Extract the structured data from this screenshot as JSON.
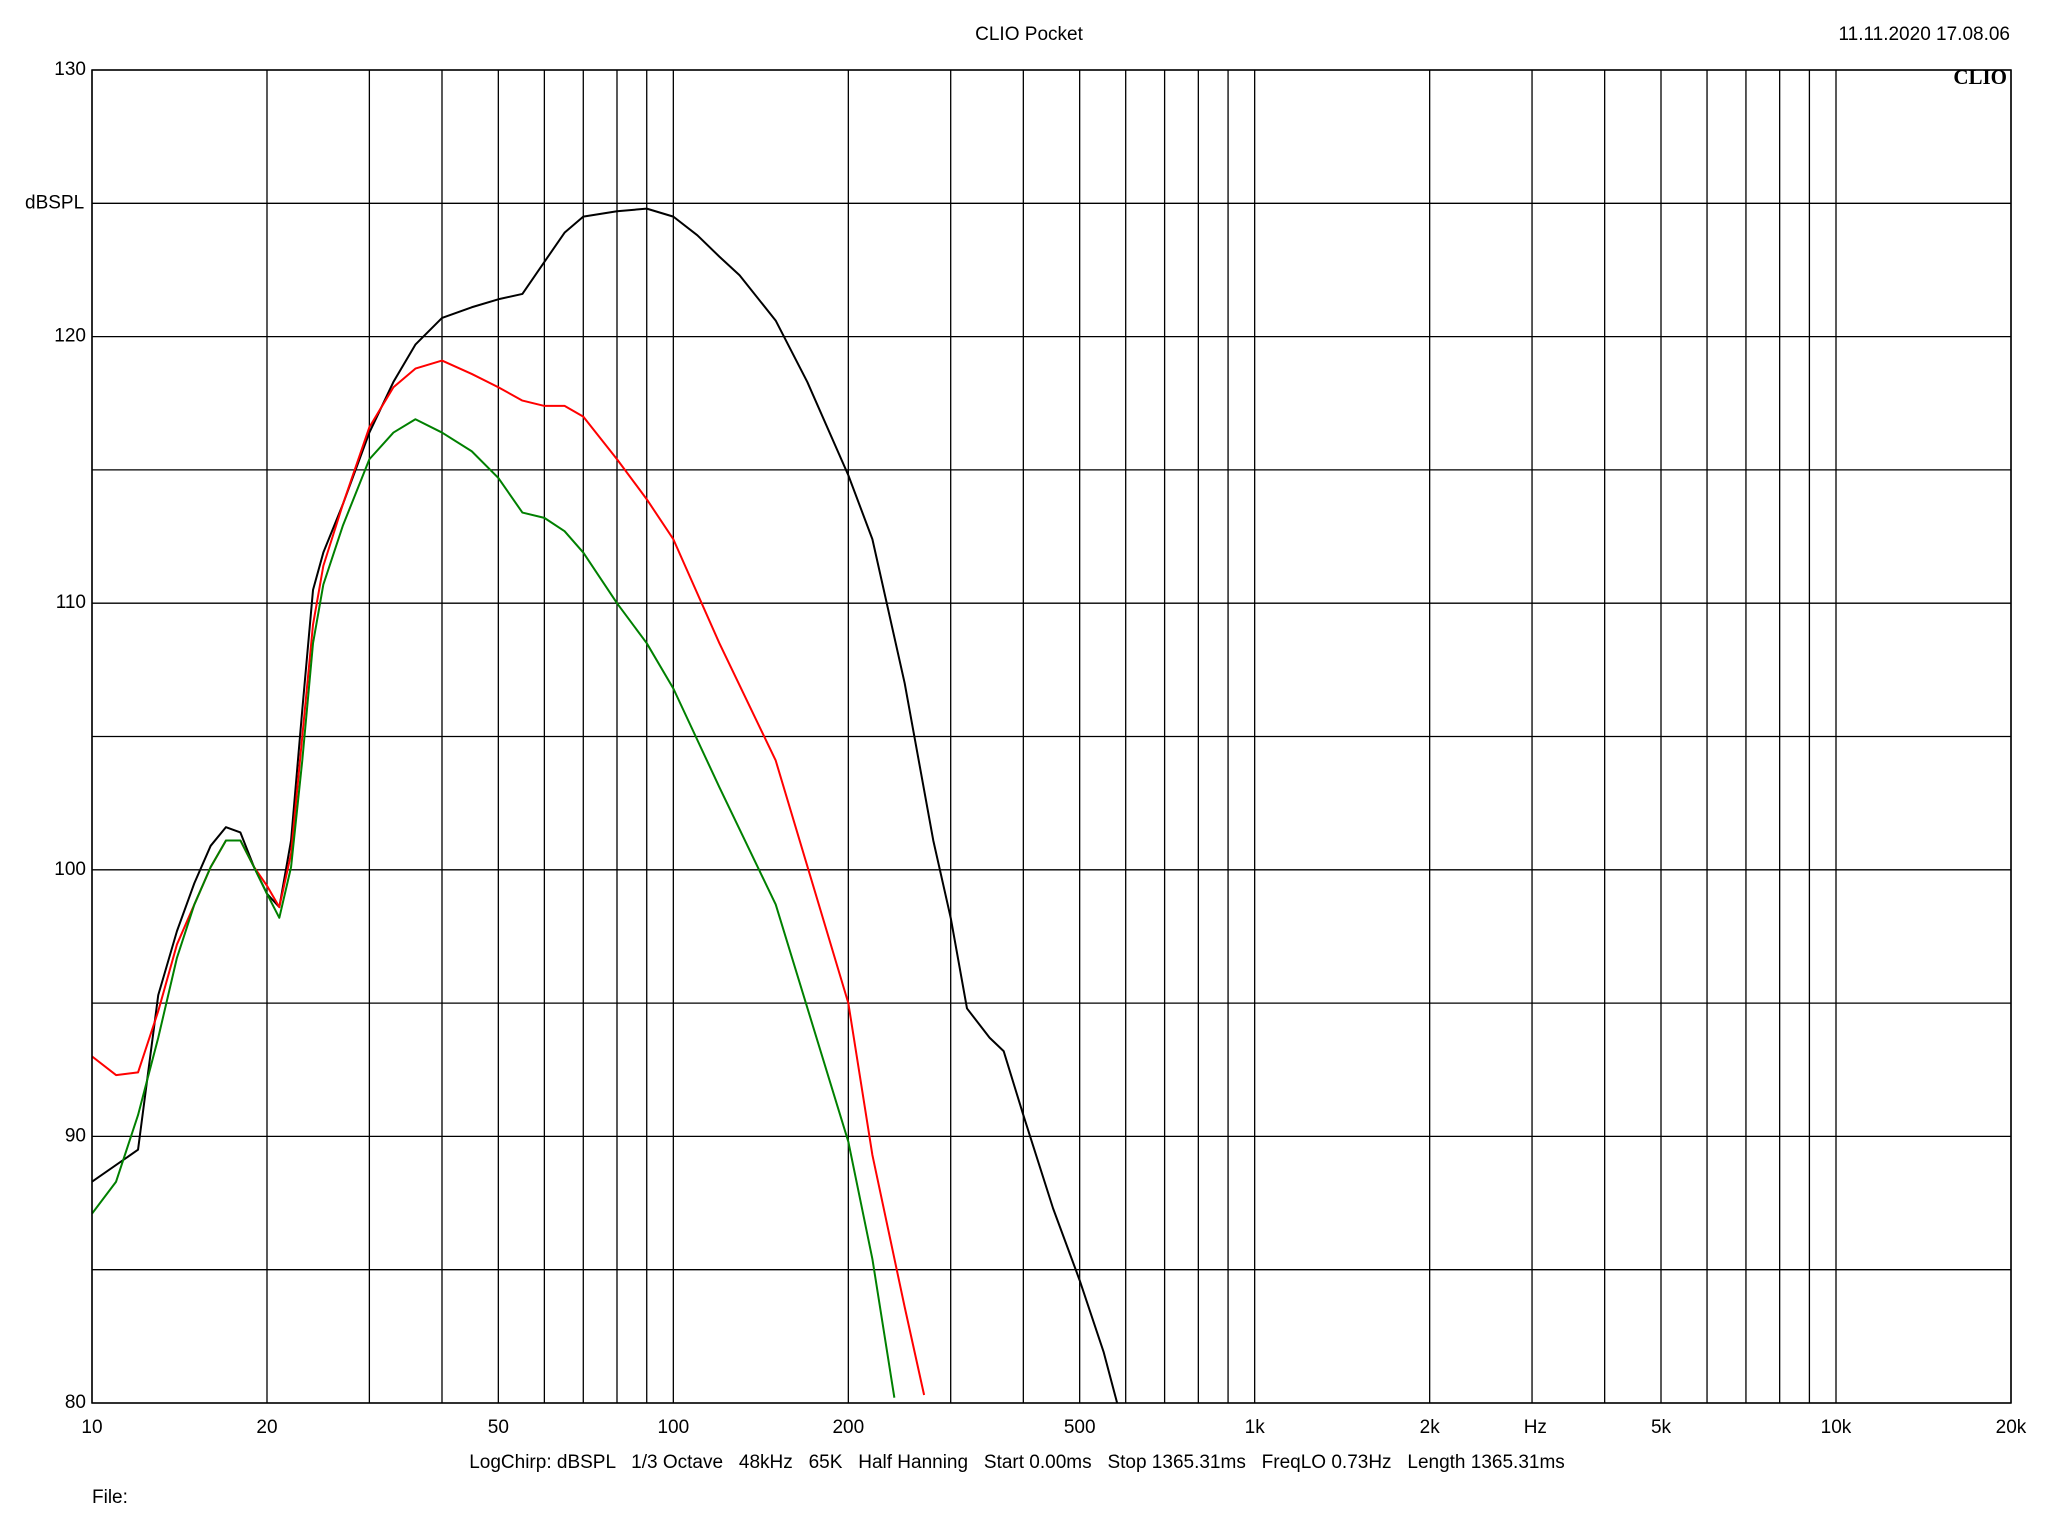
{
  "chart_data": {
    "type": "line",
    "title": "CLIO Pocket",
    "timestamp": "11.11.2020 17.08.06",
    "logo": "CLIO",
    "y_label": "dBSPL",
    "x_unit_label": "Hz",
    "footer": "LogChirp: dBSPL   1/3 Octave   48kHz   65K   Half Hanning   Start 0.00ms   Stop 1365.31ms   FreqLO 0.73Hz   Length 1365.31ms",
    "file_label": "File:",
    "x_log": true,
    "grid": true,
    "xlim": [
      10,
      20000
    ],
    "ylim": [
      80,
      130
    ],
    "xticks": [
      10,
      20,
      50,
      100,
      200,
      500,
      {
        "value": 1000,
        "label": "1k"
      },
      {
        "value": 2000,
        "label": "2k"
      },
      {
        "value": 5000,
        "label": "5k"
      },
      {
        "value": 10000,
        "label": "10k"
      },
      {
        "value": 20000,
        "label": "20k"
      }
    ],
    "x_grid": [
      30,
      40,
      60,
      70,
      80,
      90,
      300,
      400,
      600,
      700,
      800,
      900,
      3000,
      4000,
      6000,
      7000,
      8000,
      9000
    ],
    "yticks": [
      80,
      90,
      100,
      110,
      120,
      130
    ],
    "y_grid": [
      85,
      95,
      105,
      115,
      125
    ],
    "series": [
      {
        "color": "#000000",
        "x": [
          10,
          12,
          13,
          14,
          15,
          16,
          17,
          18,
          19,
          20,
          21,
          22,
          23,
          24,
          25,
          27,
          30,
          33,
          36,
          40,
          45,
          50,
          55,
          60,
          65,
          70,
          80,
          90,
          100,
          110,
          120,
          130,
          150,
          170,
          200,
          220,
          250,
          280,
          300,
          320,
          350,
          370,
          400,
          450,
          500,
          550,
          580
        ],
        "values": [
          88.3,
          89.5,
          95.3,
          97.7,
          99.5,
          100.9,
          101.6,
          101.4,
          100.1,
          99.1,
          98.6,
          101.1,
          106.0,
          110.5,
          111.9,
          113.7,
          116.4,
          118.3,
          119.7,
          120.7,
          121.1,
          121.4,
          121.6,
          122.8,
          123.9,
          124.5,
          124.7,
          124.8,
          124.5,
          123.8,
          123.0,
          122.3,
          120.6,
          118.3,
          114.8,
          112.4,
          107.0,
          101.1,
          98.2,
          94.8,
          93.7,
          93.2,
          90.8,
          87.3,
          84.6,
          81.9,
          80.0
        ]
      },
      {
        "color": "#ff0000",
        "x": [
          10,
          11,
          12,
          13,
          14,
          15,
          16,
          17,
          18,
          19,
          20,
          21,
          22,
          23,
          24,
          25,
          27,
          30,
          33,
          36,
          40,
          45,
          50,
          55,
          60,
          65,
          70,
          80,
          90,
          100,
          120,
          150,
          200,
          220,
          250,
          270
        ],
        "values": [
          93.0,
          92.3,
          92.4,
          94.7,
          97.2,
          98.7,
          100.1,
          101.1,
          101.1,
          100.1,
          99.4,
          98.6,
          100.6,
          105.0,
          109.2,
          111.4,
          113.7,
          116.6,
          118.1,
          118.8,
          119.1,
          118.6,
          118.1,
          117.6,
          117.4,
          117.4,
          117.0,
          115.4,
          113.9,
          112.4,
          108.5,
          104.1,
          95.0,
          89.3,
          83.6,
          80.3
        ]
      },
      {
        "color": "#008000",
        "x": [
          10,
          11,
          12,
          13,
          14,
          15,
          16,
          17,
          18,
          19,
          20,
          21,
          22,
          23,
          24,
          25,
          27,
          30,
          33,
          36,
          40,
          45,
          50,
          55,
          60,
          65,
          70,
          80,
          90,
          100,
          120,
          150,
          200,
          220,
          240
        ],
        "values": [
          87.1,
          88.3,
          90.8,
          93.7,
          96.7,
          98.7,
          100.1,
          101.1,
          101.1,
          100.1,
          99.1,
          98.2,
          100.1,
          104.1,
          108.5,
          110.7,
          112.9,
          115.4,
          116.4,
          116.9,
          116.4,
          115.7,
          114.7,
          113.4,
          113.2,
          112.7,
          111.9,
          110.0,
          108.5,
          106.8,
          103.1,
          98.7,
          89.8,
          85.4,
          80.2
        ]
      }
    ]
  }
}
